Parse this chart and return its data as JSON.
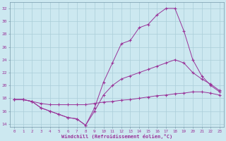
{
  "xlabel": "Windchill (Refroidissement éolien,°C)",
  "bg_color": "#cce8f0",
  "grid_color": "#aacdd8",
  "line_color": "#993399",
  "xlim": [
    -0.5,
    23.5
  ],
  "ylim": [
    13.5,
    33
  ],
  "xticks": [
    0,
    1,
    2,
    3,
    4,
    5,
    6,
    7,
    8,
    9,
    10,
    11,
    12,
    13,
    14,
    15,
    16,
    17,
    18,
    19,
    20,
    21,
    22,
    23
  ],
  "yticks": [
    14,
    16,
    18,
    20,
    22,
    24,
    26,
    28,
    30,
    32
  ],
  "series": [
    {
      "x": [
        0,
        1,
        2,
        3,
        4,
        5,
        6,
        7,
        8,
        9,
        10,
        11,
        12,
        13,
        14,
        15,
        16,
        17,
        18,
        19,
        20,
        21,
        22,
        23
      ],
      "y": [
        17.8,
        17.8,
        17.5,
        16.5,
        16.0,
        15.5,
        15.0,
        14.8,
        13.8,
        16.5,
        20.5,
        23.5,
        26.5,
        27.0,
        29.0,
        29.5,
        31.0,
        32.0,
        32.0,
        28.5,
        24.0,
        21.5,
        20.0,
        19.0
      ]
    },
    {
      "x": [
        0,
        1,
        2,
        3,
        4,
        5,
        6,
        7,
        8,
        9,
        10,
        11,
        12,
        13,
        14,
        15,
        16,
        17,
        18,
        19,
        20,
        21,
        22,
        23
      ],
      "y": [
        17.8,
        17.8,
        17.5,
        16.5,
        16.0,
        15.5,
        15.0,
        14.8,
        13.8,
        16.0,
        18.5,
        20.0,
        21.0,
        21.5,
        22.0,
        22.5,
        23.0,
        23.5,
        24.0,
        23.5,
        22.0,
        21.0,
        20.2,
        19.2
      ]
    },
    {
      "x": [
        0,
        1,
        2,
        3,
        4,
        5,
        6,
        7,
        8,
        9,
        10,
        11,
        12,
        13,
        14,
        15,
        16,
        17,
        18,
        19,
        20,
        21,
        22,
        23
      ],
      "y": [
        17.8,
        17.8,
        17.5,
        17.2,
        17.0,
        17.0,
        17.0,
        17.0,
        17.0,
        17.2,
        17.4,
        17.5,
        17.7,
        17.8,
        18.0,
        18.2,
        18.4,
        18.5,
        18.7,
        18.8,
        19.0,
        19.0,
        18.8,
        18.5
      ]
    }
  ]
}
